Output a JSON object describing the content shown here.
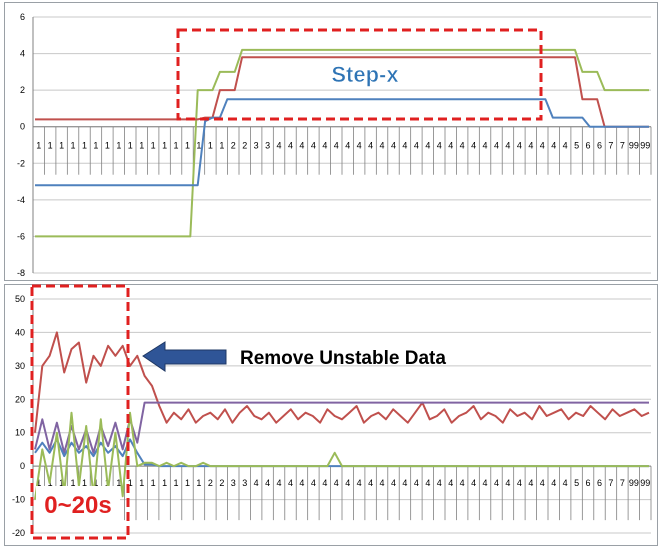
{
  "chart_data": [
    {
      "type": "line",
      "ylim": [
        -8,
        6
      ],
      "yticks": [
        "6",
        "4",
        "2",
        "0",
        "-2",
        "-4",
        "-6",
        "-8"
      ],
      "grid": "horizontal",
      "x": [
        "1",
        "1",
        "1",
        "1",
        "1",
        "1",
        "1",
        "1",
        "1",
        "1",
        "1",
        "1",
        "1",
        "1",
        "1",
        "1",
        "1",
        "1",
        "1",
        "1",
        "1",
        "1",
        "1",
        "2",
        "2",
        "2",
        "3",
        "3",
        "3",
        "3",
        "4",
        "4",
        "4",
        "4",
        "4",
        "4",
        "4",
        "4",
        "4",
        "4",
        "4",
        "4",
        "4",
        "4",
        "4",
        "4",
        "4",
        "4",
        "4",
        "4",
        "4",
        "4",
        "4",
        "4",
        "4",
        "4",
        "4",
        "4",
        "4",
        "4",
        "4",
        "4",
        "4",
        "4",
        "4",
        "4",
        "4",
        "4",
        "4",
        "4",
        "4",
        "5",
        "5",
        "5",
        "6",
        "6",
        "6",
        "6",
        "7",
        "7",
        "7",
        "99",
        "99",
        "99"
      ],
      "x_tick_labels": [
        "1",
        "1",
        "1",
        "1",
        "1",
        "1",
        "1",
        "1",
        "1",
        "1",
        "1",
        "1",
        "1",
        "1",
        "1",
        "1",
        "1",
        "2",
        "2",
        "3",
        "3",
        "4",
        "4",
        "4",
        "4",
        "4",
        "4",
        "4",
        "4",
        "4",
        "4",
        "4",
        "4",
        "4",
        "4",
        "4",
        "4",
        "4",
        "4",
        "4",
        "4",
        "4",
        "4",
        "4",
        "4",
        "4",
        "4",
        "5",
        "6",
        "6",
        "7",
        "7",
        "99",
        "99"
      ],
      "series": [
        {
          "color": "#9bbb59",
          "values": [
            -6,
            -6,
            -6,
            -6,
            -6,
            -6,
            -6,
            -6,
            -6,
            -6,
            -6,
            -6,
            -6,
            -6,
            -6,
            -6,
            -6,
            -6,
            -6,
            -6,
            -6,
            -6,
            2.0,
            2.0,
            2.0,
            3.0,
            3.0,
            3.0,
            4.2,
            4.2,
            4.2,
            4.2,
            4.2,
            4.2,
            4.2,
            4.2,
            4.2,
            4.2,
            4.2,
            4.2,
            4.2,
            4.2,
            4.2,
            4.2,
            4.2,
            4.2,
            4.2,
            4.2,
            4.2,
            4.2,
            4.2,
            4.2,
            4.2,
            4.2,
            4.2,
            4.2,
            4.2,
            4.2,
            4.2,
            4.2,
            4.2,
            4.2,
            4.2,
            4.2,
            4.2,
            4.2,
            4.2,
            4.2,
            4.2,
            4.2,
            4.2,
            4.2,
            4.2,
            4.2,
            3.0,
            3.0,
            3.0,
            2.0,
            2.0,
            2.0,
            2.0,
            2.0,
            2.0,
            2.0
          ]
        },
        {
          "color": "#c0504d",
          "values": [
            0.4,
            0.4,
            0.4,
            0.4,
            0.4,
            0.4,
            0.4,
            0.4,
            0.4,
            0.4,
            0.4,
            0.4,
            0.4,
            0.4,
            0.4,
            0.4,
            0.4,
            0.4,
            0.4,
            0.4,
            0.4,
            0.4,
            0.4,
            0.5,
            0.5,
            2.0,
            2.0,
            2.0,
            3.8,
            3.8,
            3.8,
            3.8,
            3.8,
            3.8,
            3.8,
            3.8,
            3.8,
            3.8,
            3.8,
            3.8,
            3.8,
            3.8,
            3.8,
            3.8,
            3.8,
            3.8,
            3.8,
            3.8,
            3.8,
            3.8,
            3.8,
            3.8,
            3.8,
            3.8,
            3.8,
            3.8,
            3.8,
            3.8,
            3.8,
            3.8,
            3.8,
            3.8,
            3.8,
            3.8,
            3.8,
            3.8,
            3.8,
            3.8,
            3.8,
            3.8,
            3.8,
            3.8,
            3.8,
            3.8,
            1.5,
            1.5,
            1.5,
            0,
            0,
            0,
            0,
            0,
            0,
            0
          ]
        },
        {
          "color": "#4f81bd",
          "values": [
            -3.2,
            -3.2,
            -3.2,
            -3.2,
            -3.2,
            -3.2,
            -3.2,
            -3.2,
            -3.2,
            -3.2,
            -3.2,
            -3.2,
            -3.2,
            -3.2,
            -3.2,
            -3.2,
            -3.2,
            -3.2,
            -3.2,
            -3.2,
            -3.2,
            -3.2,
            -3.2,
            0.3,
            0.5,
            0.5,
            1.5,
            1.5,
            1.5,
            1.5,
            1.5,
            1.5,
            1.5,
            1.5,
            1.5,
            1.5,
            1.5,
            1.5,
            1.5,
            1.5,
            1.5,
            1.5,
            1.5,
            1.5,
            1.5,
            1.5,
            1.5,
            1.5,
            1.5,
            1.5,
            1.5,
            1.5,
            1.5,
            1.5,
            1.5,
            1.5,
            1.5,
            1.5,
            1.5,
            1.5,
            1.5,
            1.5,
            1.5,
            1.5,
            1.5,
            1.5,
            1.5,
            1.5,
            1.5,
            1.5,
            0.5,
            0.5,
            0.5,
            0.5,
            0.5,
            0,
            0,
            0,
            0,
            0,
            0,
            0,
            0,
            0
          ]
        }
      ]
    },
    {
      "type": "line",
      "ylim": [
        -20,
        50
      ],
      "yticks": [
        "50",
        "40",
        "30",
        "20",
        "10",
        "0",
        "-10",
        "-20"
      ],
      "grid": "horizontal",
      "x_tick_labels": [
        "1",
        "1",
        "1",
        "1",
        "1",
        "1",
        "1",
        "1",
        "1",
        "1",
        "1",
        "1",
        "1",
        "1",
        "1",
        "2",
        "2",
        "3",
        "3",
        "4",
        "4",
        "4",
        "4",
        "4",
        "4",
        "4",
        "4",
        "4",
        "4",
        "4",
        "4",
        "4",
        "4",
        "4",
        "4",
        "4",
        "4",
        "4",
        "4",
        "4",
        "4",
        "4",
        "4",
        "4",
        "4",
        "4",
        "4",
        "5",
        "6",
        "6",
        "7",
        "7",
        "99",
        "99"
      ],
      "series": [
        {
          "color": "#c0504d",
          "values": [
            10,
            30,
            33,
            40,
            28,
            35,
            37,
            25,
            33,
            30,
            36,
            33,
            36,
            30,
            33,
            27,
            24,
            18,
            13,
            16,
            14,
            17,
            13,
            15,
            16,
            14,
            17,
            13,
            16,
            18,
            15,
            14,
            16,
            13,
            15,
            17,
            14,
            16,
            15,
            13,
            17,
            15,
            14,
            16,
            18,
            13,
            15,
            16,
            14,
            17,
            15,
            13,
            16,
            19,
            14,
            15,
            17,
            13,
            15,
            16,
            18,
            14,
            16,
            15,
            13,
            17,
            15,
            16,
            14,
            18,
            15,
            16,
            17,
            14,
            16,
            15,
            18,
            16,
            14,
            17,
            15,
            16,
            17,
            15,
            16
          ]
        },
        {
          "color": "#8064a2",
          "values": [
            5,
            14,
            5,
            13,
            4,
            12,
            5,
            11,
            4,
            12,
            6,
            13,
            5,
            14,
            7,
            19,
            19,
            19,
            19,
            19,
            19,
            19,
            19,
            19,
            19,
            19,
            19,
            19,
            19,
            19,
            19,
            19,
            19,
            19,
            19,
            19,
            19,
            19,
            19,
            19,
            19,
            19,
            19,
            19,
            19,
            19,
            19,
            19,
            19,
            19,
            19,
            19,
            19,
            19,
            19,
            19,
            19,
            19,
            19,
            19,
            19,
            19,
            19,
            19,
            19,
            19,
            19,
            19,
            19,
            19,
            19,
            19,
            19,
            19,
            19,
            19,
            19,
            19,
            19,
            19,
            19,
            19,
            19,
            19,
            19
          ]
        },
        {
          "color": "#4f81bd",
          "values": [
            4,
            7,
            4,
            8,
            3,
            7,
            4,
            6,
            3,
            7,
            4,
            6,
            3,
            8,
            4,
            0.5,
            0.5,
            0,
            0,
            0,
            0,
            0,
            0,
            0,
            0,
            0,
            0,
            0,
            0,
            0,
            0,
            0,
            0,
            0,
            0,
            0,
            0,
            0,
            0,
            0,
            0,
            0,
            0,
            0,
            0,
            0,
            0,
            0,
            0,
            0,
            0,
            0,
            0,
            0,
            0,
            0,
            0,
            0,
            0,
            0,
            0,
            0,
            0,
            0,
            0,
            0,
            0,
            0,
            0,
            0,
            0,
            0,
            0,
            0,
            0,
            0,
            0,
            0,
            0,
            0,
            0,
            0,
            0,
            0,
            0
          ]
        },
        {
          "color": "#9bbb59",
          "values": [
            -10,
            5,
            -5,
            10,
            -8,
            16,
            -6,
            12,
            -9,
            14,
            -7,
            10,
            -9,
            16,
            0,
            1,
            1,
            0,
            1,
            0,
            1,
            0,
            0,
            1,
            0,
            0,
            0,
            0,
            0,
            0,
            0,
            0,
            0,
            0,
            0,
            0,
            0,
            0,
            0,
            0,
            0,
            4,
            0,
            0,
            0,
            0,
            0,
            0,
            0,
            0,
            0,
            0,
            0,
            0,
            0,
            0,
            0,
            0,
            0,
            0,
            0,
            0,
            0,
            0,
            0,
            0,
            0,
            0,
            0,
            0,
            0,
            0,
            0,
            0,
            0,
            0,
            0,
            0,
            0,
            0,
            0,
            0,
            0,
            0,
            0
          ]
        }
      ]
    }
  ],
  "annotations": {
    "step_label": "Step-x",
    "remove_label": "Remove Unstable Data",
    "time_label": "0~20s"
  },
  "colors": {
    "annotation_red": "#e02020",
    "annotation_blue": "#2e74b5",
    "arrow_blue": "#2f5597",
    "grid": "#c8c8c8",
    "axis_text": "#000000"
  }
}
